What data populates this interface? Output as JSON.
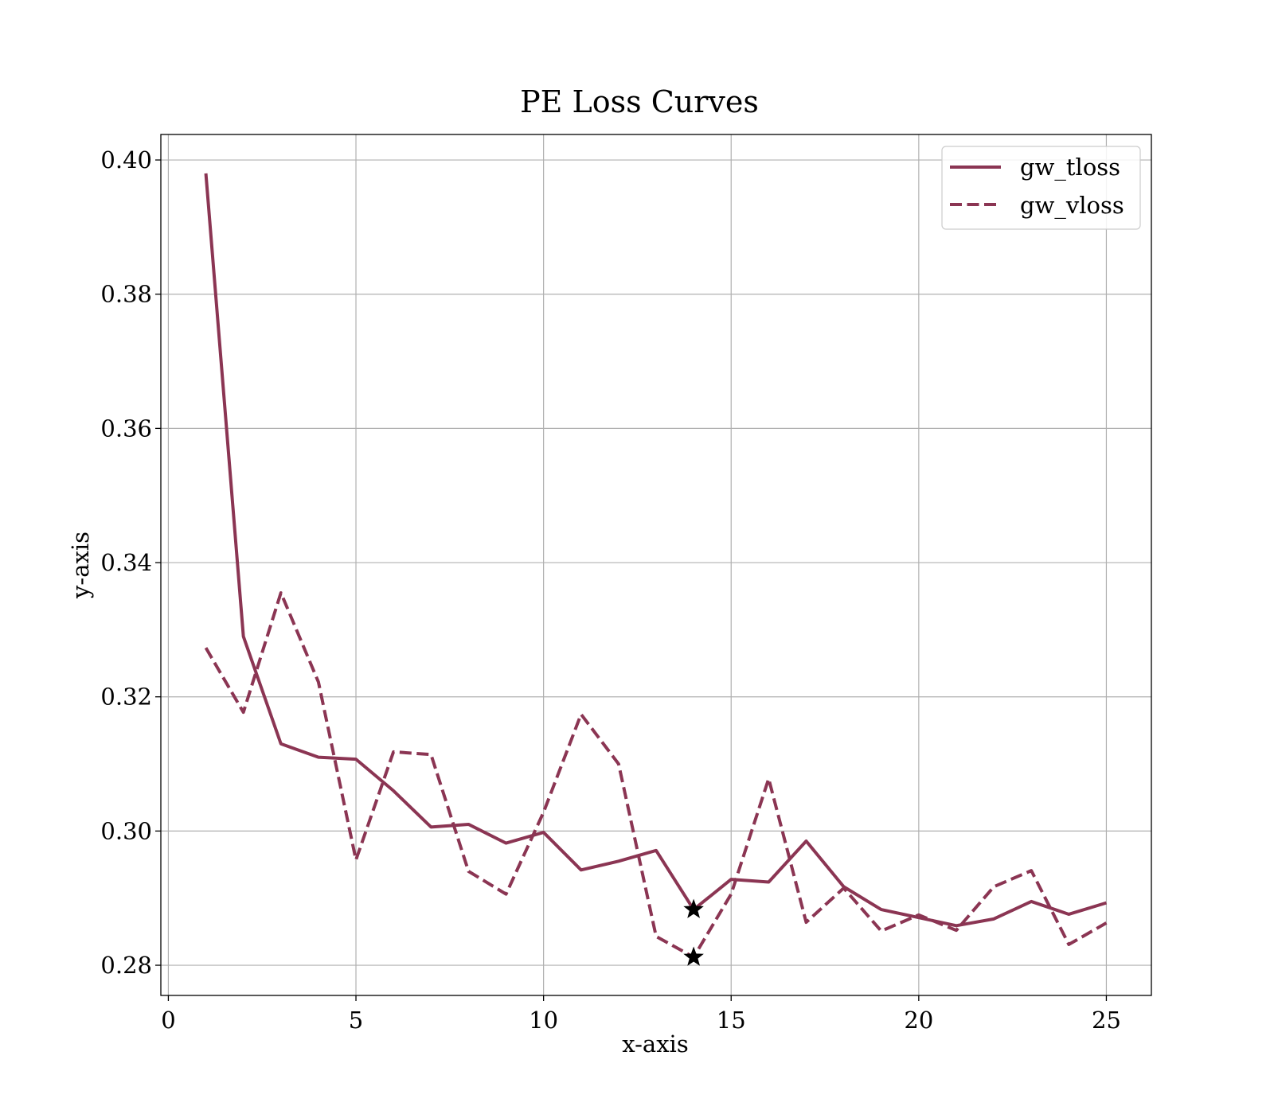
{
  "chart_data": {
    "type": "line",
    "title": "PE Loss Curves",
    "xlabel": "x-axis",
    "ylabel": "y-axis",
    "xlim": [
      -0.2,
      26.2
    ],
    "ylim": [
      0.2755,
      0.4038
    ],
    "xticks": [
      0,
      5,
      10,
      15,
      20,
      25
    ],
    "xtick_labels": [
      "0",
      "5",
      "10",
      "15",
      "20",
      "25"
    ],
    "yticks": [
      0.28,
      0.3,
      0.32,
      0.34,
      0.36,
      0.38,
      0.4
    ],
    "ytick_labels": [
      "0.28",
      "0.30",
      "0.32",
      "0.34",
      "0.36",
      "0.38",
      "0.40"
    ],
    "grid": true,
    "legend_position": "top-right",
    "line_color": "#8b3553",
    "x": [
      1,
      2,
      3,
      4,
      5,
      6,
      7,
      8,
      9,
      10,
      11,
      12,
      13,
      14,
      15,
      16,
      17,
      18,
      19,
      20,
      21,
      22,
      23,
      24,
      25
    ],
    "series": [
      {
        "name": "gw_tloss",
        "style": "solid",
        "values": [
          0.398,
          0.329,
          0.313,
          0.311,
          0.3107,
          0.306,
          0.3006,
          0.301,
          0.2982,
          0.2998,
          0.2942,
          0.2955,
          0.2971,
          0.2883,
          0.2928,
          0.2924,
          0.2985,
          0.2917,
          0.2883,
          0.2871,
          0.2859,
          0.2869,
          0.2895,
          0.2876,
          0.2893
        ],
        "min_marker": {
          "x": 14,
          "y": 0.2883
        }
      },
      {
        "name": "gw_vloss",
        "style": "dashed",
        "values": [
          0.3273,
          0.3177,
          0.3355,
          0.3222,
          0.2957,
          0.3118,
          0.3114,
          0.294,
          0.2906,
          0.3028,
          0.3174,
          0.31,
          0.2843,
          0.2812,
          0.2906,
          0.3078,
          0.2864,
          0.2915,
          0.2851,
          0.2875,
          0.2852,
          0.2917,
          0.2941,
          0.2831,
          0.2863
        ],
        "min_marker": {
          "x": 14,
          "y": 0.2812
        }
      }
    ]
  }
}
